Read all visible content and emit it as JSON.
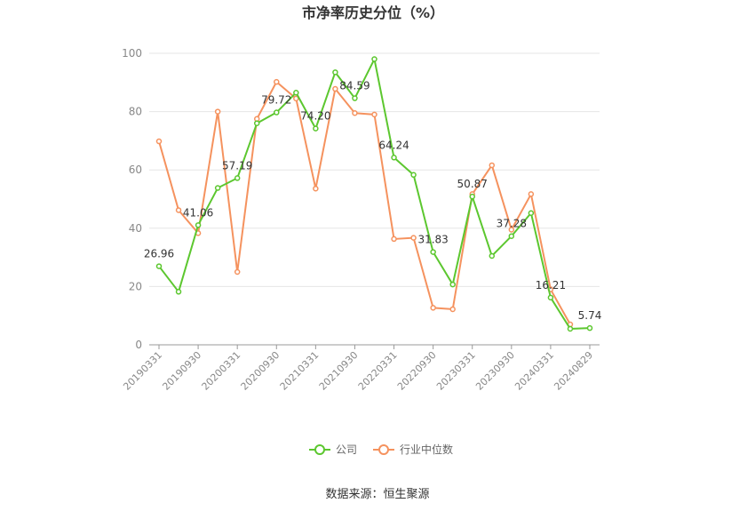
{
  "chart_data": {
    "type": "line",
    "title": "市净率历史分位（%）",
    "ylim": [
      0,
      100
    ],
    "yticks": [
      0,
      20,
      40,
      60,
      80,
      100
    ],
    "grid": true,
    "legend_position": "bottom",
    "x": [
      "20190331",
      "20190630",
      "20190930",
      "20191231",
      "20200331",
      "20200630",
      "20200930",
      "20201231",
      "20210331",
      "20210630",
      "20210930",
      "20211231",
      "20220331",
      "20220630",
      "20220930",
      "20221231",
      "20230331",
      "20230630",
      "20230930",
      "20231231",
      "20240331",
      "20240630",
      "20240829"
    ],
    "xtick_labels": [
      "20190331",
      "20190930",
      "20200331",
      "20200930",
      "20210331",
      "20210930",
      "20220331",
      "20220930",
      "20230331",
      "20230930",
      "20240331",
      "20240829"
    ],
    "series": [
      {
        "name": "公司",
        "color": "#5CC72F",
        "values": [
          26.96,
          18.2,
          41.06,
          53.8,
          57.19,
          76.0,
          79.72,
          86.5,
          74.2,
          93.5,
          84.59,
          98.0,
          64.24,
          58.3,
          31.83,
          20.7,
          50.87,
          30.5,
          37.28,
          45.2,
          16.21,
          5.5,
          5.74
        ],
        "labels": {
          "0": "26.96",
          "2": "41.06",
          "4": "57.19",
          "6": "79.72",
          "8": "74.20",
          "10": "84.59",
          "12": "64.24",
          "14": "31.83",
          "16": "50.87",
          "18": "37.28",
          "20": "16.21",
          "22": "5.74"
        }
      },
      {
        "name": "行业中位数",
        "color": "#F5925E",
        "values": [
          69.8,
          46.2,
          38.3,
          80.0,
          25.0,
          77.5,
          90.2,
          84.5,
          53.6,
          87.8,
          79.5,
          79.0,
          36.3,
          36.7,
          12.7,
          12.2,
          51.7,
          61.6,
          39.5,
          51.7,
          19.0,
          7.0,
          null
        ]
      }
    ]
  },
  "footer": {
    "source": "数据来源：恒生聚源"
  }
}
